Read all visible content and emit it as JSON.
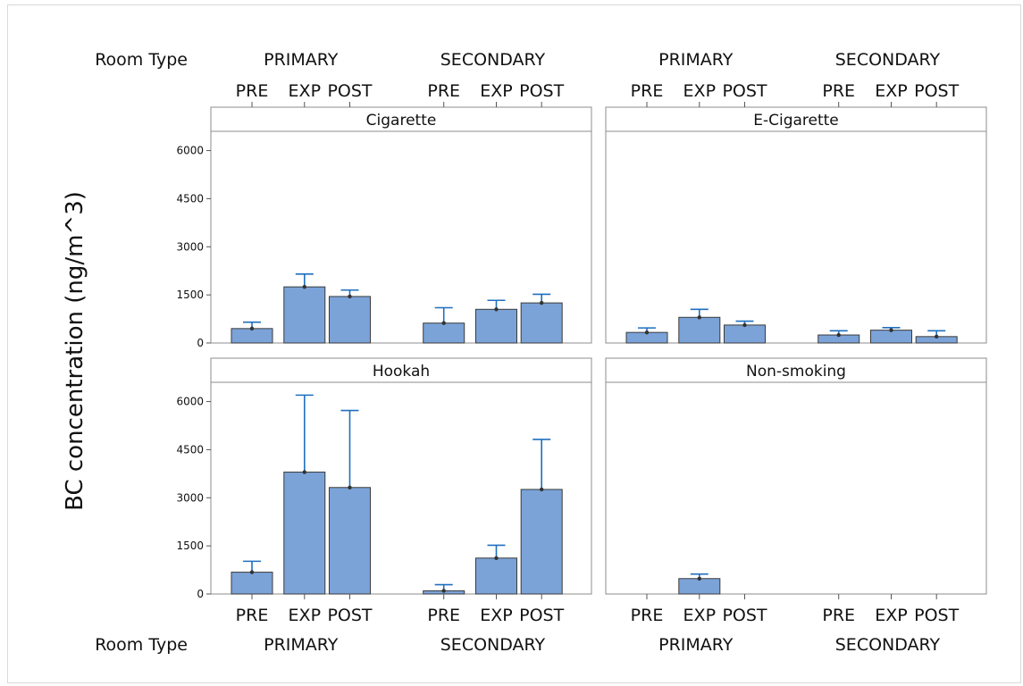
{
  "chart_data": {
    "type": "bar",
    "ylabel": "BC concentration (ng/m^3)",
    "x_axis_title": "Room Type",
    "groups": [
      "PRIMARY",
      "SECONDARY"
    ],
    "categories": [
      "PRE",
      "EXP",
      "POST"
    ],
    "ylim": [
      0,
      6600
    ],
    "yticks": [
      0,
      1500,
      3000,
      4500,
      6000
    ],
    "bar_color": "#7ba3d8",
    "errorbar_color": "#1f6fbf",
    "grid": false,
    "panels": [
      {
        "title": "Cigarette",
        "PRIMARY": {
          "values": [
            450,
            1750,
            1450
          ],
          "upper": [
            650,
            2150,
            1650
          ]
        },
        "SECONDARY": {
          "values": [
            620,
            1050,
            1250
          ],
          "upper": [
            1100,
            1330,
            1520
          ]
        }
      },
      {
        "title": "E-Cigarette",
        "PRIMARY": {
          "values": [
            330,
            800,
            560
          ],
          "upper": [
            470,
            1050,
            680
          ]
        },
        "SECONDARY": {
          "values": [
            250,
            400,
            200
          ],
          "upper": [
            380,
            480,
            380
          ]
        }
      },
      {
        "title": "Hookah",
        "PRIMARY": {
          "values": [
            680,
            3800,
            3320
          ],
          "upper": [
            1020,
            6200,
            5720
          ]
        },
        "SECONDARY": {
          "values": [
            100,
            1120,
            3260
          ],
          "upper": [
            290,
            1520,
            4820
          ]
        }
      },
      {
        "title": "Non-smoking",
        "PRIMARY": {
          "values": [
            null,
            480,
            null
          ],
          "upper": [
            null,
            620,
            null
          ]
        },
        "SECONDARY": {
          "values": [
            null,
            null,
            null
          ],
          "upper": [
            null,
            null,
            null
          ]
        }
      }
    ]
  }
}
